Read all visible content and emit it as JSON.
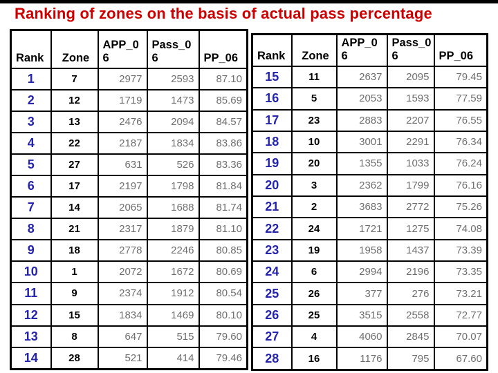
{
  "page": {
    "title": "Ranking of zones on the basis of actual pass percentage",
    "colors": {
      "title": "#cc0000",
      "rank": "#2424ac",
      "zone": "#000000",
      "value": "#6f6f6f",
      "border": "#000000",
      "background": "#ffffff"
    }
  },
  "tables": {
    "left": {
      "headers": [
        "Rank",
        "Zone",
        "APP_0\n6",
        "Pass_0\n6",
        "PP_06"
      ],
      "rows": [
        [
          "1",
          "7",
          "2977",
          "2593",
          "87.10"
        ],
        [
          "2",
          "12",
          "1719",
          "1473",
          "85.69"
        ],
        [
          "3",
          "13",
          "2476",
          "2094",
          "84.57"
        ],
        [
          "4",
          "22",
          "2187",
          "1834",
          "83.86"
        ],
        [
          "5",
          "27",
          "631",
          "526",
          "83.36"
        ],
        [
          "6",
          "17",
          "2197",
          "1798",
          "81.84"
        ],
        [
          "7",
          "14",
          "2065",
          "1688",
          "81.74"
        ],
        [
          "8",
          "21",
          "2317",
          "1879",
          "81.10"
        ],
        [
          "9",
          "18",
          "2778",
          "2246",
          "80.85"
        ],
        [
          "10",
          "1",
          "2072",
          "1672",
          "80.69"
        ],
        [
          "11",
          "9",
          "2374",
          "1912",
          "80.54"
        ],
        [
          "12",
          "15",
          "1834",
          "1469",
          "80.10"
        ],
        [
          "13",
          "8",
          "647",
          "515",
          "79.60"
        ],
        [
          "14",
          "28",
          "521",
          "414",
          "79.46"
        ]
      ]
    },
    "right": {
      "headers": [
        "Rank",
        "Zone",
        "APP_0\n6",
        "Pass_0\n6",
        "PP_06"
      ],
      "rows": [
        [
          "15",
          "11",
          "2637",
          "2095",
          "79.45"
        ],
        [
          "16",
          "5",
          "2053",
          "1593",
          "77.59"
        ],
        [
          "17",
          "23",
          "2883",
          "2207",
          "76.55"
        ],
        [
          "18",
          "10",
          "3001",
          "2291",
          "76.34"
        ],
        [
          "19",
          "20",
          "1355",
          "1033",
          "76.24"
        ],
        [
          "20",
          "3",
          "2362",
          "1799",
          "76.16"
        ],
        [
          "21",
          "2",
          "3683",
          "2772",
          "75.26"
        ],
        [
          "22",
          "24",
          "1721",
          "1275",
          "74.08"
        ],
        [
          "23",
          "19",
          "1958",
          "1437",
          "73.39"
        ],
        [
          "24",
          "6",
          "2994",
          "2196",
          "73.35"
        ],
        [
          "25",
          "26",
          "377",
          "276",
          "73.21"
        ],
        [
          "26",
          "25",
          "3515",
          "2558",
          "72.77"
        ],
        [
          "27",
          "4",
          "4060",
          "2845",
          "70.07"
        ],
        [
          "28",
          "16",
          "1176",
          "795",
          "67.60"
        ]
      ]
    }
  }
}
